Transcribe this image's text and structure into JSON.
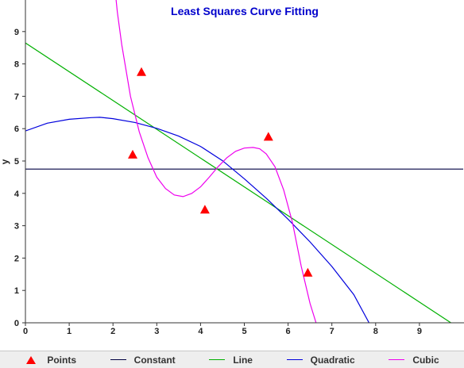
{
  "chart_data": {
    "type": "scatter",
    "title": "Least Squares Curve Fitting",
    "title_color": "#0000cc",
    "xlabel": "",
    "ylabel": "y",
    "xlim": [
      0,
      10
    ],
    "ylim": [
      0,
      10
    ],
    "x_ticks": [
      "0",
      "1",
      "2",
      "3",
      "4",
      "5",
      "6",
      "7",
      "8",
      "9"
    ],
    "y_ticks": [
      "0",
      "1",
      "2",
      "3",
      "4",
      "5",
      "6",
      "7",
      "8",
      "9"
    ],
    "grid": false,
    "legend_position": "bottom",
    "points": {
      "name": "Points",
      "color": "#ff0000",
      "marker": "triangle",
      "x": [
        2.45,
        2.65,
        4.1,
        5.55,
        6.45
      ],
      "y": [
        5.2,
        7.75,
        3.5,
        5.75,
        1.55
      ]
    },
    "fits": [
      {
        "name": "Constant",
        "color": "#000040",
        "kind": "constant",
        "coefficients": [
          4.75
        ]
      },
      {
        "name": "Line",
        "color": "#00b000",
        "kind": "linear",
        "coefficients": [
          8.65,
          -0.89
        ]
      },
      {
        "name": "Quadratic",
        "color": "#0000dd",
        "kind": "quadratic",
        "x": [
          0,
          0.5,
          1,
          1.5,
          1.7,
          2,
          2.5,
          3,
          3.5,
          4,
          4.5,
          5,
          5.5,
          6,
          6.5,
          7,
          7.5,
          7.85
        ],
        "y": [
          5.93,
          6.17,
          6.29,
          6.34,
          6.35,
          6.31,
          6.19,
          6.01,
          5.77,
          5.45,
          5.01,
          4.45,
          3.85,
          3.2,
          2.5,
          1.74,
          0.87,
          0
        ]
      },
      {
        "name": "Cubic",
        "color": "#ee00ee",
        "kind": "cubic",
        "x": [
          2.05,
          2.1,
          2.2,
          2.4,
          2.6,
          2.8,
          3.0,
          3.2,
          3.4,
          3.6,
          3.8,
          4.0,
          4.2,
          4.4,
          4.6,
          4.8,
          5.0,
          5.2,
          5.35,
          5.5,
          5.7,
          5.9,
          6.1,
          6.3,
          6.5,
          6.65
        ],
        "y": [
          10.25,
          9.6,
          8.6,
          7.0,
          5.9,
          5.1,
          4.5,
          4.15,
          3.95,
          3.9,
          4.0,
          4.2,
          4.5,
          4.82,
          5.1,
          5.3,
          5.4,
          5.42,
          5.38,
          5.22,
          4.82,
          4.1,
          3.1,
          1.75,
          0.6,
          -0.05
        ]
      }
    ]
  },
  "legend": {
    "points": "Points",
    "constant": "Constant",
    "line": "Line",
    "quadratic": "Quadratic",
    "cubic": "Cubic"
  }
}
